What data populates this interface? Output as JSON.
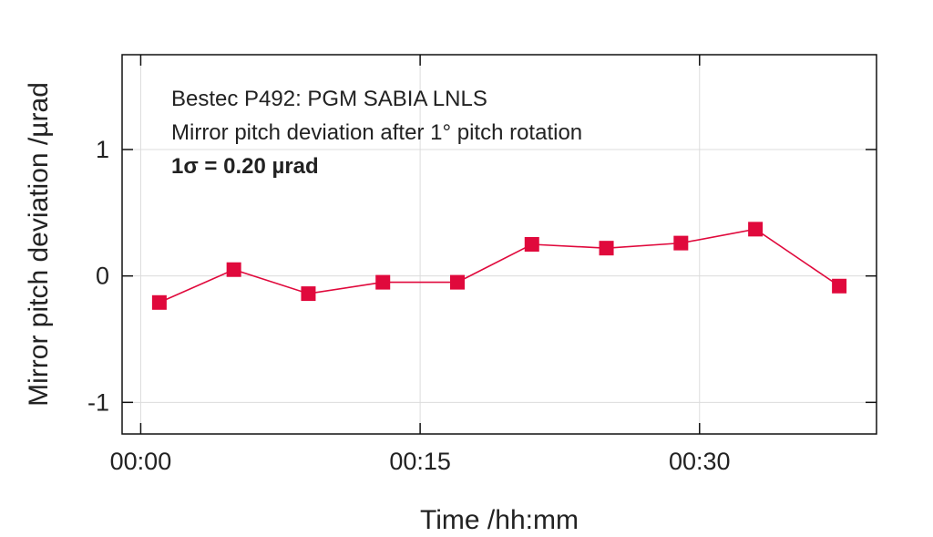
{
  "chart_data": {
    "type": "line",
    "title": "",
    "xlabel": "Time /hh:mm",
    "ylabel": "Mirror pitch deviation /µrad",
    "x_unit": "minutes",
    "x_tick_values": [
      0,
      15,
      30
    ],
    "x_tick_labels": [
      "00:00",
      "00:15",
      "00:30"
    ],
    "y_tick_values": [
      -1,
      0,
      1
    ],
    "y_tick_labels": [
      "-1",
      "0",
      "1"
    ],
    "xlim": [
      -1,
      39.5
    ],
    "ylim": [
      -1.25,
      1.75
    ],
    "grid": true,
    "annotations": [
      "Bestec P492: PGM SABIA LNLS",
      "Mirror pitch deviation after 1° pitch rotation",
      "1σ = 0.20 µrad"
    ],
    "series": [
      {
        "color": "#e0093c",
        "marker": "square",
        "x": [
          1,
          5,
          9,
          13,
          17,
          21,
          25,
          29,
          33,
          37.5
        ],
        "y": [
          -0.21,
          0.05,
          -0.14,
          -0.05,
          -0.05,
          0.25,
          0.22,
          0.26,
          0.37,
          -0.08
        ]
      }
    ]
  }
}
